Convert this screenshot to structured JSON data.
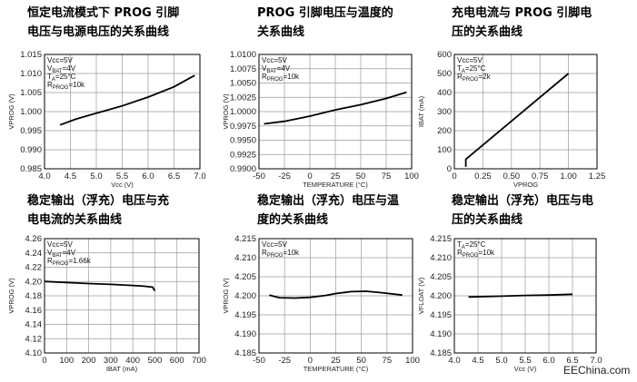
{
  "captions": [
    [
      "恒定电流模式下 PROG 引脚",
      "电压与电源电压的关系曲线"
    ],
    [
      "PROG 引脚电压与温度的",
      "关系曲线"
    ],
    [
      "充电电流与 PROG 引脚电",
      "压的关系曲线"
    ],
    [
      "稳定输出（浮充）电压与充",
      "电电流的关系曲线"
    ],
    [
      "稳定输出（浮充）电压与温",
      "度的关系曲线"
    ],
    [
      "稳定输出（浮充）电压与电",
      "压的关系曲线"
    ]
  ],
  "watermark": "EEChina.com",
  "chart_data": [
    {
      "type": "line",
      "xlabel": "Vcc (V)",
      "ylabel": "VPROG (V)",
      "xlim": [
        4.0,
        7.0
      ],
      "ylim": [
        0.985,
        1.015
      ],
      "x_ticks": [
        "4.0",
        "4.5",
        "5.0",
        "5.5",
        "6.0",
        "6.5",
        "7.0"
      ],
      "y_ticks": [
        "0.985",
        "0.990",
        "0.995",
        "1.000",
        "1.005",
        "1.010",
        "1.015"
      ],
      "annotations": [
        "Vcc=5V",
        "VBAT=4V",
        "TA=25°C",
        "RPROG=10k"
      ],
      "grid": true,
      "series": [
        {
          "x": [
            4.3,
            4.6,
            5.0,
            5.5,
            6.0,
            6.5,
            6.9
          ],
          "y": [
            0.9965,
            0.998,
            0.9996,
            1.0015,
            1.0038,
            1.0065,
            1.0095
          ]
        }
      ]
    },
    {
      "type": "line",
      "xlabel": "TEMPERATURE (°C)",
      "ylabel": "VPROG (V)",
      "xlim": [
        -50,
        100
      ],
      "ylim": [
        0.99,
        1.01
      ],
      "x_ticks": [
        "-50",
        "-25",
        "0",
        "25",
        "50",
        "75",
        "100"
      ],
      "y_ticks": [
        "0.9900",
        "0.9925",
        "0.9950",
        "0.9975",
        "1.0000",
        "1.0025",
        "1.0050",
        "1.0075",
        "1.0100"
      ],
      "annotations": [
        "Vcc=5V",
        "VBAT=4V",
        "RPROG=10k"
      ],
      "grid": true,
      "series": [
        {
          "x": [
            -45,
            -25,
            0,
            25,
            50,
            75,
            95
          ],
          "y": [
            0.99785,
            0.9983,
            0.9992,
            1.0003,
            1.0012,
            1.0023,
            1.0034
          ]
        }
      ]
    },
    {
      "type": "line",
      "xlabel": "VPROG",
      "ylabel": "IBAT (mA)",
      "xlim": [
        0,
        1.25
      ],
      "ylim": [
        0,
        600
      ],
      "x_ticks": [
        "0",
        "0.25",
        "0.50",
        "0.75",
        "1.00",
        "1.25"
      ],
      "y_ticks": [
        "0",
        "100",
        "200",
        "300",
        "400",
        "500",
        "600"
      ],
      "annotations": [
        "Vcc=5V",
        "TA=25°C",
        "RPROG=2k"
      ],
      "grid": true,
      "series": [
        {
          "x": [
            0.1,
            0.1,
            1.0
          ],
          "y": [
            10,
            50,
            500
          ]
        }
      ]
    },
    {
      "type": "line",
      "xlabel": "IBAT (mA)",
      "ylabel": "VPROG (V)",
      "xlim": [
        0,
        700
      ],
      "ylim": [
        4.1,
        4.26
      ],
      "x_ticks": [
        "0",
        "100",
        "200",
        "300",
        "400",
        "500",
        "600",
        "700"
      ],
      "y_ticks": [
        "4.10",
        "4.12",
        "4.14",
        "4.16",
        "4.18",
        "4.20",
        "4.22",
        "4.24",
        "4.26"
      ],
      "annotations": [
        "Vcc=5V",
        "VBAT=4V",
        "RPROG=1.66k"
      ],
      "grid": true,
      "series": [
        {
          "x": [
            0,
            100,
            200,
            300,
            400,
            450,
            490,
            500
          ],
          "y": [
            4.2,
            4.1985,
            4.1972,
            4.196,
            4.1945,
            4.1935,
            4.192,
            4.187
          ]
        }
      ]
    },
    {
      "type": "line",
      "xlabel": "TEMPERATURE (°C)",
      "ylabel": "VPROG (V)",
      "xlim": [
        -50,
        100
      ],
      "ylim": [
        4.185,
        4.215
      ],
      "x_ticks": [
        "-50",
        "-25",
        "0",
        "25",
        "50",
        "75",
        "100"
      ],
      "y_ticks": [
        "4.185",
        "4.190",
        "4.195",
        "4.200",
        "4.205",
        "4.210",
        "4.215"
      ],
      "annotations": [
        "Vcc=5V",
        "RPROG=10k"
      ],
      "grid": true,
      "series": [
        {
          "x": [
            -40,
            -30,
            -15,
            0,
            15,
            25,
            40,
            55,
            70,
            90
          ],
          "y": [
            4.2002,
            4.1995,
            4.1994,
            4.1996,
            4.2001,
            4.2006,
            4.2011,
            4.2012,
            4.2008,
            4.2002
          ]
        }
      ]
    },
    {
      "type": "line",
      "xlabel": "Vcc (V)",
      "ylabel": "VFLOAT (V)",
      "xlim": [
        4.0,
        7.0
      ],
      "ylim": [
        4.185,
        4.215
      ],
      "x_ticks": [
        "4.0",
        "4.5",
        "5.0",
        "5.5",
        "6.0",
        "6.5",
        "7.0"
      ],
      "y_ticks": [
        "4.185",
        "4.190",
        "4.195",
        "4.200",
        "4.205",
        "4.210",
        "4.215"
      ],
      "annotations": [
        "TA=25°C",
        "RPROG=10k"
      ],
      "grid": true,
      "series": [
        {
          "x": [
            4.3,
            5.0,
            5.5,
            6.0,
            6.5
          ],
          "y": [
            4.1997,
            4.1999,
            4.2001,
            4.2002,
            4.2004
          ]
        }
      ]
    }
  ]
}
